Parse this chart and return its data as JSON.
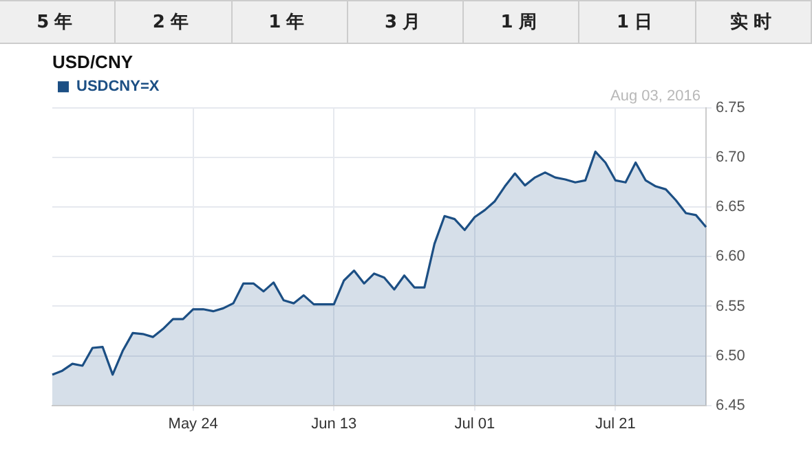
{
  "chart_data": {
    "type": "area",
    "title": "USD/CNY",
    "categories": [
      null,
      null,
      null,
      null,
      null,
      null,
      null,
      null,
      null,
      null,
      null,
      null,
      null,
      null,
      "May 24",
      null,
      null,
      null,
      null,
      null,
      null,
      null,
      null,
      null,
      null,
      null,
      null,
      null,
      "Jun 13",
      null,
      null,
      null,
      null,
      null,
      null,
      null,
      null,
      null,
      null,
      null,
      null,
      null,
      "Jul 01",
      null,
      null,
      null,
      null,
      null,
      null,
      null,
      null,
      null,
      null,
      null,
      null,
      null,
      "Jul 21",
      null,
      null,
      null,
      null,
      null,
      null,
      null,
      null,
      null
    ],
    "series": [
      {
        "name": "USDCNY=X",
        "color": "#1c4f84",
        "values": [
          6.481,
          6.485,
          6.492,
          6.49,
          6.508,
          6.509,
          6.481,
          6.505,
          6.523,
          6.522,
          6.519,
          6.527,
          6.537,
          6.537,
          6.547,
          6.547,
          6.545,
          6.548,
          6.553,
          6.573,
          6.573,
          6.565,
          6.574,
          6.556,
          6.553,
          6.561,
          6.552,
          6.552,
          6.552,
          6.576,
          6.586,
          6.573,
          6.583,
          6.579,
          6.567,
          6.581,
          6.569,
          6.569,
          6.613,
          6.641,
          6.638,
          6.627,
          6.64,
          6.647,
          6.656,
          6.671,
          6.684,
          6.672,
          6.68,
          6.685,
          6.68,
          6.678,
          6.675,
          6.677,
          6.706,
          6.695,
          6.677,
          6.675,
          6.695,
          6.677,
          6.671,
          6.668,
          6.657,
          6.644,
          6.642,
          6.63
        ]
      }
    ],
    "ylim": [
      6.45,
      6.75
    ],
    "yticks": [
      6.45,
      {
        "value": 6.5,
        "label": "6.50"
      },
      6.55,
      {
        "value": 6.6,
        "label": "6.60"
      },
      6.65,
      {
        "value": 6.7,
        "label": "6.70"
      },
      6.75
    ],
    "grid": true,
    "legend": "top left",
    "marker": "none",
    "line_style": "solid",
    "annotations": [
      "Aug 03, 2016",
      "5年",
      "2年",
      "1年",
      "3月",
      "1周",
      "1日",
      "实时"
    ]
  }
}
